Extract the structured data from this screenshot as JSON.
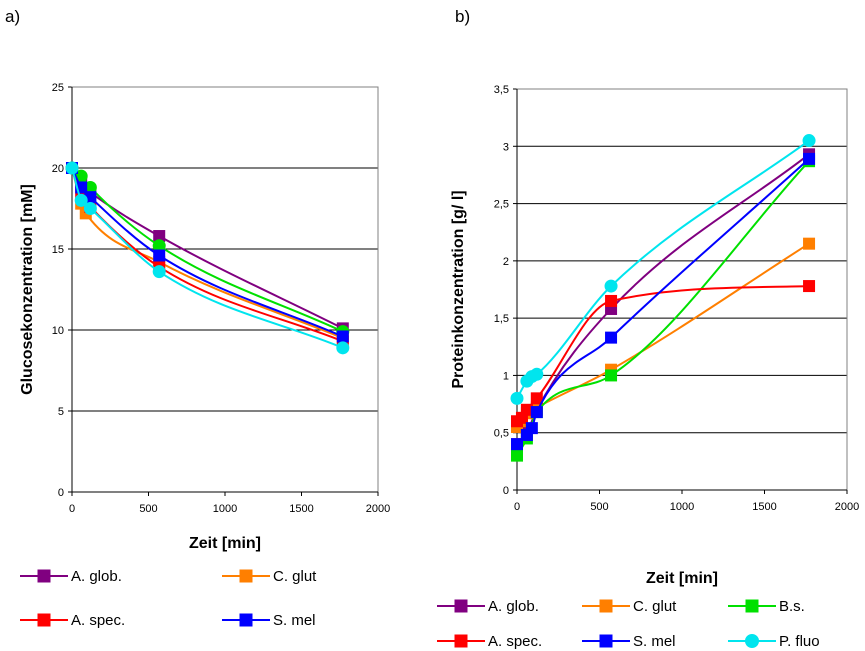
{
  "panels": {
    "left_label": "a)",
    "right_label": "b)"
  },
  "chart_data": [
    {
      "id": "a",
      "type": "line",
      "xlabel": "Zeit [min]",
      "ylabel": "Glucosekonzentration [mM]",
      "xlim": [
        0,
        2000
      ],
      "ylim": [
        0,
        25
      ],
      "xticks": [
        0,
        500,
        1000,
        1500,
        2000
      ],
      "xtick_labels": [
        "0",
        "500",
        "1000",
        "1500",
        "2000"
      ],
      "yticks": [
        0,
        5,
        10,
        15,
        20,
        25
      ],
      "ytick_labels": [
        "0",
        "5",
        "10",
        "15",
        "20",
        "25"
      ],
      "grid": "horizontal",
      "legend_position": "bottom",
      "series": [
        {
          "name": "A. glob.",
          "color": "#800080",
          "marker": "square",
          "x": [
            0,
            60,
            120,
            570,
            1770
          ],
          "y": [
            20,
            19.0,
            18.5,
            15.8,
            10.1
          ]
        },
        {
          "name": "C. glut",
          "color": "#ff7f00",
          "marker": "square",
          "x": [
            0,
            60,
            90,
            570,
            1770
          ],
          "y": [
            20,
            17.8,
            17.2,
            14.2,
            9.5
          ]
        },
        {
          "name": "B.s.",
          "color": "#00e000",
          "marker": "circle",
          "x": [
            0,
            60,
            120,
            570,
            1770
          ],
          "y": [
            20,
            19.5,
            18.8,
            15.2,
            9.9
          ]
        },
        {
          "name": "A. spec.",
          "color": "#ff0000",
          "marker": "square",
          "x": [
            0,
            60,
            120,
            570,
            1770
          ],
          "y": [
            20,
            18.3,
            17.6,
            13.9,
            9.3
          ]
        },
        {
          "name": "S. mel",
          "color": "#0000ff",
          "marker": "square",
          "x": [
            0,
            60,
            120,
            570,
            1770
          ],
          "y": [
            20,
            18.8,
            18.2,
            14.6,
            9.6
          ]
        },
        {
          "name": "P. fluo",
          "color": "#00e5ee",
          "marker": "circle",
          "x": [
            0,
            60,
            120,
            570,
            1770
          ],
          "y": [
            20,
            18.0,
            17.5,
            13.6,
            8.9
          ]
        }
      ],
      "legend": [
        "A. glob.",
        "C. glut",
        "A. spec.",
        "S. mel"
      ]
    },
    {
      "id": "b",
      "type": "line",
      "xlabel": "Zeit [min]",
      "ylabel": "Proteinkonzentration [g/ l]",
      "xlim": [
        0,
        2000
      ],
      "ylim": [
        0,
        3.5
      ],
      "xticks": [
        0,
        500,
        1000,
        1500,
        2000
      ],
      "xtick_labels": [
        "0",
        "500",
        "1000",
        "1500",
        "2000"
      ],
      "yticks": [
        0,
        0.5,
        1,
        1.5,
        2,
        2.5,
        3,
        3.5
      ],
      "ytick_labels": [
        "0",
        "0,5",
        "1",
        "1,5",
        "2",
        "2,5",
        "3",
        "3,5"
      ],
      "grid": "horizontal",
      "legend_position": "bottom",
      "series": [
        {
          "name": "A. glob.",
          "color": "#800080",
          "marker": "square",
          "x": [
            0,
            60,
            120,
            570,
            1770
          ],
          "y": [
            0.4,
            0.5,
            0.7,
            1.58,
            2.93
          ]
        },
        {
          "name": "C. glut",
          "color": "#ff7f00",
          "marker": "square",
          "x": [
            0,
            30,
            60,
            120,
            570,
            1770
          ],
          "y": [
            0.55,
            0.6,
            0.67,
            0.72,
            1.05,
            2.15
          ]
        },
        {
          "name": "B.s.",
          "color": "#00e000",
          "marker": "square",
          "x": [
            0,
            60,
            120,
            570,
            1770
          ],
          "y": [
            0.3,
            0.45,
            0.68,
            1.0,
            2.87
          ]
        },
        {
          "name": "A. spec.",
          "color": "#ff0000",
          "marker": "square",
          "x": [
            0,
            30,
            60,
            120,
            570,
            1770
          ],
          "y": [
            0.6,
            0.63,
            0.7,
            0.8,
            1.65,
            1.78
          ]
        },
        {
          "name": "S. mel",
          "color": "#0000ff",
          "marker": "square",
          "x": [
            0,
            60,
            90,
            120,
            570,
            1770
          ],
          "y": [
            0.4,
            0.48,
            0.54,
            0.68,
            1.33,
            2.89
          ]
        },
        {
          "name": "P. fluo",
          "color": "#00e5ee",
          "marker": "circle",
          "x": [
            0,
            60,
            90,
            120,
            570,
            1770
          ],
          "y": [
            0.8,
            0.95,
            0.99,
            1.01,
            1.78,
            3.05
          ]
        }
      ],
      "legend": [
        "A. glob.",
        "C. glut",
        "B.s.",
        "A. spec.",
        "S. mel",
        "P. fluo"
      ]
    }
  ]
}
